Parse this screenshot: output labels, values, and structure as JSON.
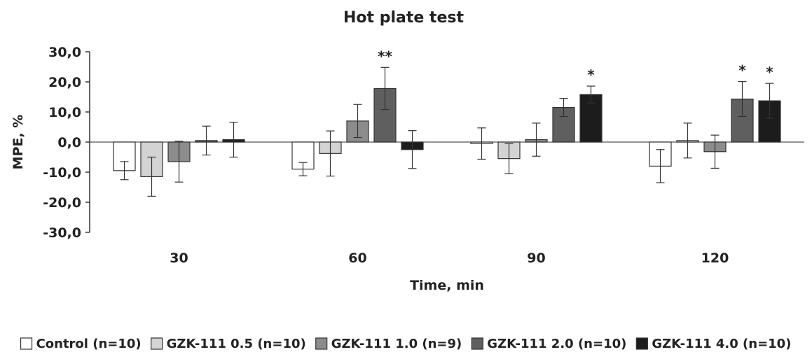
{
  "chart_data": {
    "type": "bar",
    "title": "Hot plate test",
    "xlabel": "Time, min",
    "ylabel": "MPE, %",
    "ylim": [
      -30,
      30
    ],
    "yticks": [
      30,
      20,
      10,
      0,
      -10,
      -20,
      -30
    ],
    "ytick_labels": [
      "30,0",
      "20,0",
      "10,0",
      "0,0",
      "-10,0",
      "-20,0",
      "-30,0"
    ],
    "grid": false,
    "legend_position": "bottom",
    "categories": [
      "30",
      "60",
      "90",
      "120"
    ],
    "series": [
      {
        "name": "Control (n=10)",
        "color": "#ffffff",
        "values": [
          -9.5,
          -9.0,
          -0.5,
          -8.0
        ],
        "errors": [
          3.0,
          2.2,
          5.2,
          5.5
        ],
        "significance": [
          "",
          "",
          "",
          ""
        ]
      },
      {
        "name": "GZK-111 0.5 (n=10)",
        "color": "#d3d3d3",
        "values": [
          -11.5,
          -3.8,
          -5.5,
          0.5
        ],
        "errors": [
          6.5,
          7.5,
          5.0,
          5.8
        ],
        "significance": [
          "",
          "",
          "",
          ""
        ]
      },
      {
        "name": "GZK-111 1.0 (n=9)",
        "color": "#8c8c8c",
        "values": [
          -6.5,
          7.0,
          0.8,
          -3.2
        ],
        "errors": [
          6.8,
          5.5,
          5.5,
          5.5
        ],
        "significance": [
          "",
          "",
          "",
          ""
        ]
      },
      {
        "name": "GZK-111 2.0 (n=10)",
        "color": "#5f5f5f",
        "values": [
          0.5,
          17.8,
          11.5,
          14.3
        ],
        "errors": [
          4.8,
          7.0,
          3.0,
          5.8
        ],
        "significance": [
          "",
          "**",
          "",
          "*"
        ]
      },
      {
        "name": "GZK-111 4.0 (n=10)",
        "color": "#1c1c1c",
        "values": [
          0.8,
          -2.5,
          15.8,
          13.7
        ],
        "errors": [
          5.8,
          6.3,
          2.8,
          5.8
        ],
        "significance": [
          "",
          "",
          "*",
          "*"
        ]
      }
    ]
  }
}
